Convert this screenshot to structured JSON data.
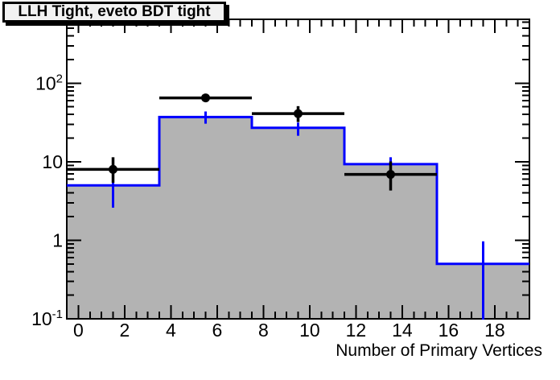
{
  "title": {
    "text": "LLH Tight, eveto BDT tight"
  },
  "colors": {
    "mc_line": "#0000ff",
    "mc_fill": "#b3b3b3",
    "data_color": "#000000",
    "frame_color": "#000000",
    "title_box_bg": "#f2f2f2",
    "background": "#ffffff"
  },
  "chart_data": {
    "type": "bar",
    "subtype": "step-histogram-with-data-points",
    "title": "LLH Tight, eveto BDT tight",
    "xlabel": "Number of Primary Vertices",
    "ylabel": "",
    "xlim": [
      -0.5,
      19.5
    ],
    "ylim": [
      0.1,
      650
    ],
    "yscale": "log",
    "grid": false,
    "legend": "none",
    "bin_edges": [
      -0.5,
      3.5,
      7.5,
      11.5,
      15.5,
      19.5
    ],
    "series": [
      {
        "name": "filled-step-histogram",
        "style": "step-filled",
        "line_color": "#0000ff",
        "fill_color": "#b3b3b3",
        "values": [
          5.0,
          37,
          27,
          9.3,
          0.5
        ],
        "err_lo": [
          2.6,
          30.5,
          21.4,
          7.2,
          0.05
        ],
        "err_hi": [
          7.0,
          43.6,
          31.5,
          11.4,
          0.97
        ]
      },
      {
        "name": "data-points",
        "style": "points",
        "marker": "full-circle",
        "color": "#000000",
        "x": [
          1.5,
          5.5,
          9.5,
          13.5
        ],
        "y": [
          8,
          65,
          41,
          6.9
        ],
        "err_lo": [
          5.4,
          58,
          32,
          4.3
        ],
        "err_hi": [
          11.4,
          73,
          51,
          10.1
        ],
        "x_err": 2.0
      }
    ],
    "x_axis": {
      "title": "Number of Primary Vertices",
      "tick_values": [
        0,
        2,
        4,
        6,
        8,
        10,
        12,
        14,
        16,
        18
      ],
      "tick_labels": [
        "0",
        "2",
        "4",
        "6",
        "8",
        "10",
        "12",
        "14",
        "16",
        "18"
      ],
      "minor_step": 0.5
    },
    "y_axis": {
      "tick_values": [
        0.1,
        1,
        10,
        100
      ],
      "tick_labels": [
        [
          "10",
          "-1"
        ],
        [
          "1",
          ""
        ],
        [
          "10",
          ""
        ],
        [
          "10",
          "2"
        ]
      ],
      "minor": "log-2-to-9"
    }
  }
}
